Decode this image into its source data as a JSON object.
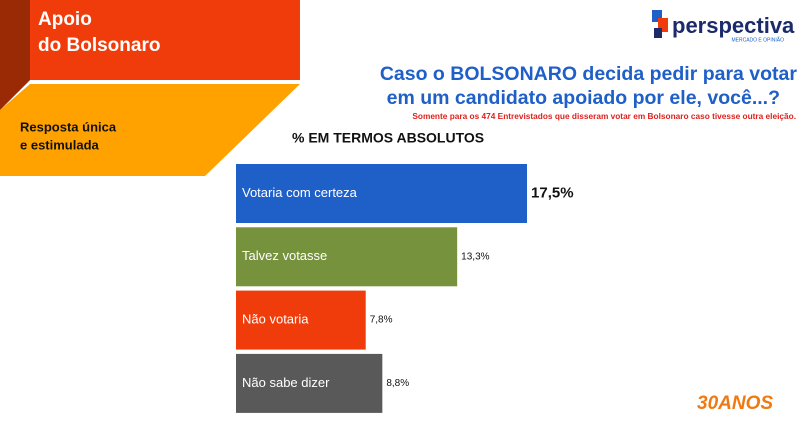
{
  "chart_data": {
    "type": "bar",
    "section_title": [
      "Apoio",
      "do Bolsonaro"
    ],
    "section_note": [
      "Resposta única",
      "e estimulada"
    ],
    "title": [
      "Caso o BOLSONARO decida pedir para votar",
      "em um candidato apoiado por ele, você...?"
    ],
    "subtitle": "Somente para os 474 Entrevistados que disseram votar em Bolsonaro caso tivesse outra eleição.",
    "axis_label": "% EM TERMOS ABSOLUTOS",
    "categories": [
      "Votaria com certeza",
      "Talvez votasse",
      "Não votaria",
      "Não sabe dizer"
    ],
    "values": [
      17.5,
      13.3,
      7.8,
      8.8
    ],
    "value_labels": [
      "17,5%",
      "13,3%",
      "7,8%",
      "8,8%"
    ],
    "colors": [
      "#1f5fc8",
      "#76923c",
      "#f03c0a",
      "#595959"
    ],
    "brand": "perspectiva",
    "brand_tagline": "MERCADO E OPINIÃO",
    "anniversary": "30ANOS"
  }
}
